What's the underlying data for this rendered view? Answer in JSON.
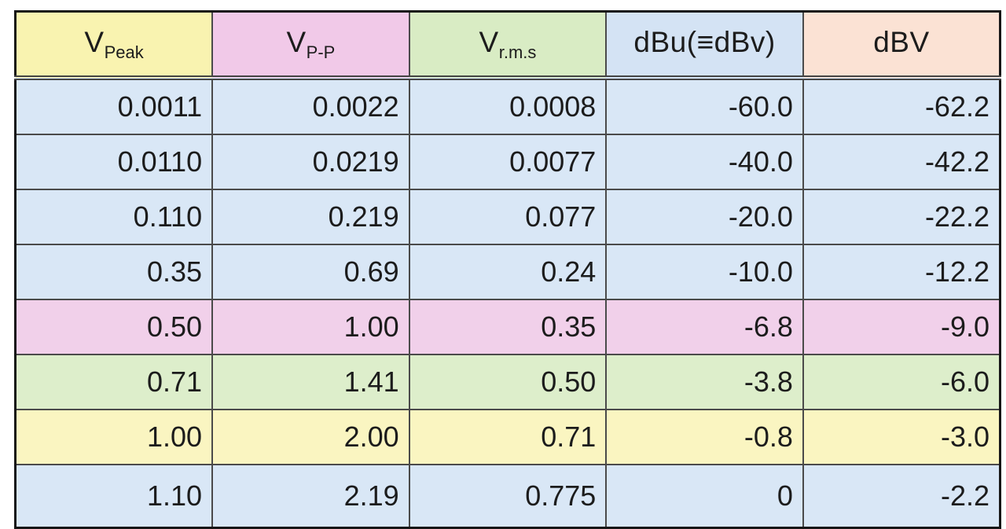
{
  "chart_data": {
    "type": "table",
    "title": "",
    "columns": [
      {
        "id": "v_peak",
        "main": "V",
        "sub": "Peak",
        "header_bg": "#f9f3b0"
      },
      {
        "id": "v_pp",
        "main": "V",
        "sub": "P-P",
        "header_bg": "#f1c9e8"
      },
      {
        "id": "v_rms",
        "main": "V",
        "sub": "r.m.s",
        "header_bg": "#d9ecc4"
      },
      {
        "id": "dbu",
        "main": "dBu(≡dBv)",
        "sub": "",
        "header_bg": "#d4e3f4"
      },
      {
        "id": "dbv",
        "main": "dBV",
        "sub": "",
        "header_bg": "#fbe2d4"
      }
    ],
    "rows": [
      {
        "cells": [
          "0.0011",
          "0.0022",
          "0.0008",
          "-60.0",
          "-62.2"
        ],
        "bg": "#d9e7f6"
      },
      {
        "cells": [
          "0.0110",
          "0.0219",
          "0.0077",
          "-40.0",
          "-42.2"
        ],
        "bg": "#d9e7f6"
      },
      {
        "cells": [
          "0.110",
          "0.219",
          "0.077",
          "-20.0",
          "-22.2"
        ],
        "bg": "#d9e7f6"
      },
      {
        "cells": [
          "0.35",
          "0.69",
          "0.24",
          "-10.0",
          "-12.2"
        ],
        "bg": "#d9e7f6"
      },
      {
        "cells": [
          "0.50",
          "1.00",
          "0.35",
          "-6.8",
          "-9.0"
        ],
        "bg": "#f1d0ea"
      },
      {
        "cells": [
          "0.71",
          "1.41",
          "0.50",
          "-3.8",
          "-6.0"
        ],
        "bg": "#ddeecb"
      },
      {
        "cells": [
          "1.00",
          "2.00",
          "0.71",
          "-0.8",
          "-3.0"
        ],
        "bg": "#faf5c1"
      },
      {
        "cells": [
          "1.10",
          "2.19",
          "0.775",
          "0",
          "-2.2"
        ],
        "bg": "#d9e7f6"
      }
    ],
    "colors": {
      "outer_border": "#161616",
      "inner_border": "#4a4a4a",
      "text": "#1c1c1c",
      "page_background": "#ffffff"
    }
  }
}
